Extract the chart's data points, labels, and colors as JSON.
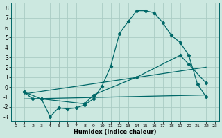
{
  "xlabel": "Humidex (Indice chaleur)",
  "xlim": [
    -0.5,
    23.5
  ],
  "ylim": [
    -3.5,
    8.5
  ],
  "xticks": [
    0,
    1,
    2,
    3,
    4,
    5,
    6,
    7,
    8,
    9,
    10,
    11,
    12,
    13,
    14,
    15,
    16,
    17,
    18,
    19,
    20,
    21,
    22,
    23
  ],
  "yticks": [
    -3,
    -2,
    -1,
    0,
    1,
    2,
    3,
    4,
    5,
    6,
    7,
    8
  ],
  "bg_color": "#cce8e0",
  "grid_color": "#aaccc4",
  "line_color": "#006868",
  "line1_x": [
    1,
    2,
    3,
    4,
    5,
    6,
    7,
    8,
    9,
    10,
    11,
    12,
    13,
    14,
    15,
    16,
    17,
    18,
    19,
    20,
    21,
    22
  ],
  "line1_y": [
    -0.5,
    -1.2,
    -1.2,
    -3.0,
    -2.1,
    -2.2,
    -2.1,
    -1.8,
    -1.2,
    0.1,
    2.1,
    5.4,
    6.6,
    7.7,
    7.7,
    7.5,
    6.5,
    5.2,
    4.5,
    3.2,
    0.3,
    -1.0
  ],
  "line2_x": [
    1,
    3,
    8,
    9,
    14,
    19,
    20,
    22
  ],
  "line2_y": [
    -0.5,
    -1.2,
    -1.7,
    -0.8,
    1.0,
    3.2,
    2.3,
    0.4
  ],
  "line3_x": [
    1,
    22
  ],
  "line3_y": [
    -0.7,
    2.0
  ],
  "line4_x": [
    1,
    22
  ],
  "line4_y": [
    -1.2,
    -0.8
  ]
}
